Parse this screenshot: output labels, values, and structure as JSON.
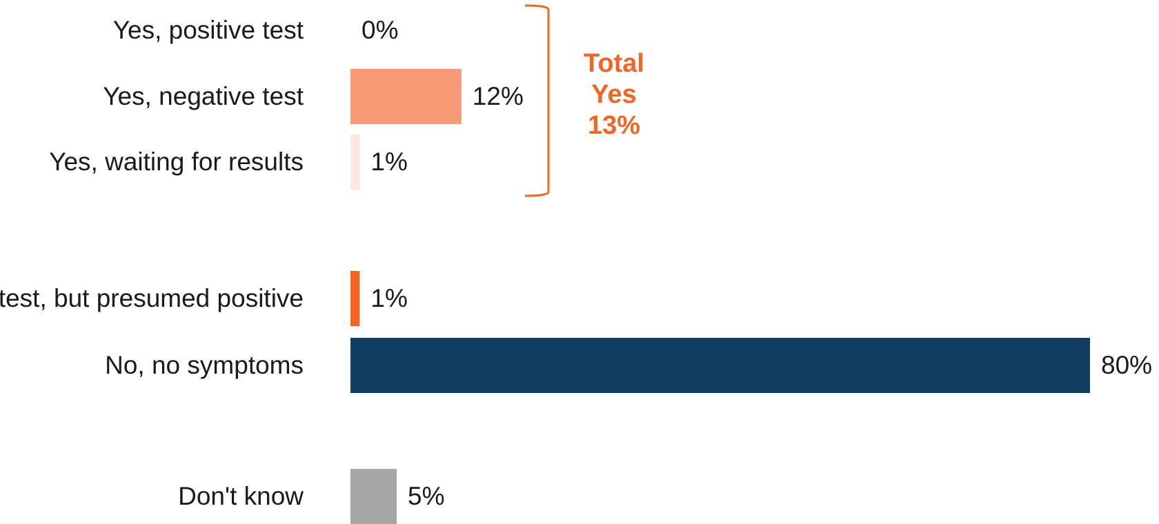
{
  "chart_data": {
    "type": "bar",
    "orientation": "horizontal",
    "title": "",
    "xlabel": "",
    "ylabel": "",
    "xlim": [
      0,
      80
    ],
    "grid": false,
    "legend": "none",
    "value_suffix": "%",
    "categories": [
      "Yes, positive test",
      "Yes, negative test",
      "Yes, waiting for results",
      "No test, but presumed positive",
      "No, no symptoms",
      "Don't know"
    ],
    "values": [
      0,
      12,
      1,
      1,
      80,
      5
    ],
    "value_labels": [
      "0%",
      "12%",
      "1%",
      "1%",
      "80%",
      "5%"
    ],
    "colors": [
      "#f26522",
      "#f69a75",
      "#fde8df",
      "#f26522",
      "#113d61",
      "#a6a6a6"
    ],
    "annotation": {
      "lines": [
        "Total",
        "Yes",
        "13%"
      ],
      "color": "#f26522",
      "bracket_categories": [
        "Yes, positive test",
        "Yes, negative test",
        "Yes, waiting for results"
      ]
    }
  }
}
